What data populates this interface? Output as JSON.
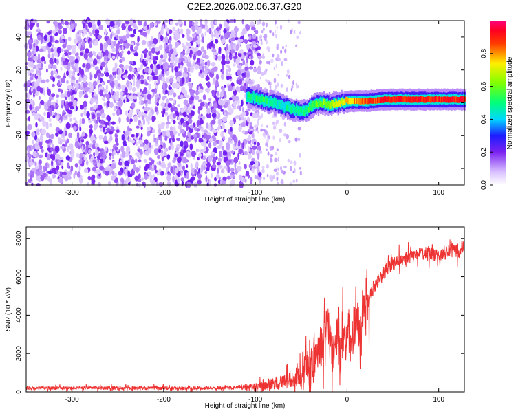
{
  "title": "C2E2.2026.002.06.37.G20",
  "chart_data": [
    {
      "type": "heatmap",
      "xlabel": "Height of straight line (km)",
      "ylabel": "Frequency (Hz)",
      "xlim": [
        -350,
        128
      ],
      "ylim": [
        -50,
        50
      ],
      "x_ticks": [
        -300,
        -200,
        -100,
        0,
        100
      ],
      "y_ticks": [
        -40,
        -20,
        0,
        20,
        40
      ],
      "colorbar": {
        "label": "Normalized spectral amplitude",
        "range": [
          0,
          1
        ],
        "ticks": [
          0.0,
          0.2,
          0.4,
          0.6,
          0.8
        ],
        "tick_labels": [
          "0.0",
          "0.2",
          "0.4",
          "0.6",
          "0.8"
        ]
      },
      "noise_region_x": [
        -350,
        -95
      ],
      "transition_region_x": [
        -95,
        -50
      ],
      "signal_track": {
        "x": [
          -110,
          -100,
          -90,
          -80,
          -70,
          -60,
          -50,
          -45,
          -40,
          -30,
          -20,
          -10,
          0,
          20,
          40,
          60,
          80,
          100,
          128
        ],
        "freq": [
          4,
          3,
          1,
          0,
          -2,
          -4,
          -5,
          -5,
          -2,
          0,
          -1,
          0,
          1,
          1,
          2,
          2,
          2,
          2,
          2
        ],
        "amplitude": [
          0.45,
          0.5,
          0.5,
          0.45,
          0.45,
          0.45,
          0.45,
          0.5,
          0.55,
          0.6,
          0.65,
          0.7,
          0.75,
          0.85,
          0.9,
          0.9,
          0.9,
          0.9,
          0.9
        ]
      }
    },
    {
      "type": "line",
      "xlabel": "Height of straight line (km)",
      "ylabel": "SNR (10 * v/v)",
      "xlim": [
        -350,
        128
      ],
      "ylim": [
        0,
        8600
      ],
      "x_ticks": [
        -300,
        -200,
        -100,
        0,
        100
      ],
      "y_ticks": [
        0,
        2000,
        4000,
        6000,
        8000
      ],
      "series": [
        {
          "name": "SNR",
          "color": "#ee3333",
          "x": [
            -350,
            -300,
            -250,
            -200,
            -150,
            -110,
            -90,
            -70,
            -50,
            -40,
            -30,
            -25,
            -20,
            -15,
            -10,
            0,
            10,
            15,
            20,
            30,
            40,
            50,
            60,
            70,
            80,
            90,
            100,
            110,
            115,
            120,
            128
          ],
          "y": [
            200,
            200,
            200,
            200,
            200,
            220,
            300,
            500,
            900,
            1400,
            2200,
            3000,
            3200,
            2000,
            2500,
            2800,
            3000,
            3800,
            4500,
            5500,
            6200,
            6700,
            6950,
            7050,
            7150,
            7250,
            7100,
            7300,
            7600,
            7200,
            7700
          ]
        }
      ]
    }
  ]
}
